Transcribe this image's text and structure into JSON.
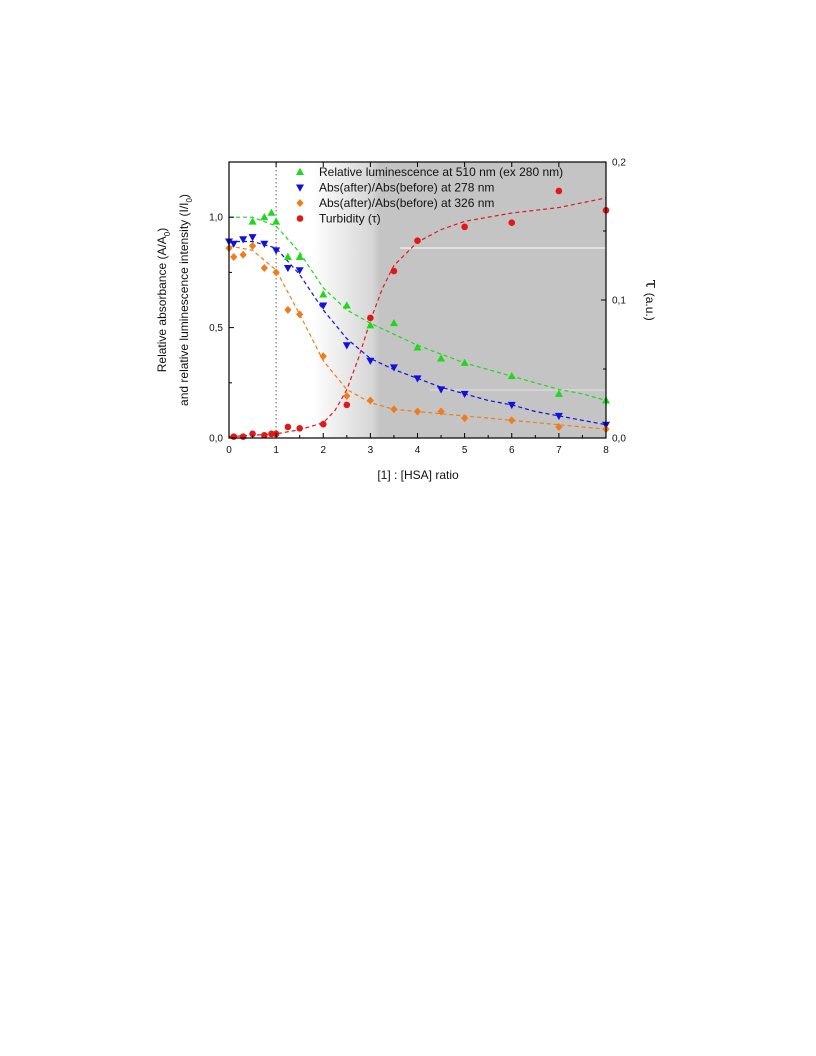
{
  "chart_data": {
    "type": "scatter",
    "xlabel": "[1] : [HSA] ratio",
    "ylabel_left_line1": "Relative absorbance (A/A",
    "ylabel_left_sub1": "0",
    "ylabel_left_mid": ")",
    "ylabel_left_line2": "and relative luminescence intensity (I/I",
    "ylabel_left_sub2": "0",
    "ylabel_left_end": ")",
    "ylabel_right_symbol": "τ",
    "ylabel_right_units": "(a.u.)",
    "xlim": [
      0,
      8
    ],
    "ylim_left": [
      0,
      1.25
    ],
    "ylim_right": [
      0,
      0.2
    ],
    "x_ticks": [
      "0",
      "1",
      "2",
      "3",
      "4",
      "5",
      "6",
      "7",
      "8"
    ],
    "y_left_ticks": [
      "0,0",
      "0,5",
      "1,0"
    ],
    "y_right_ticks": [
      "0,0",
      "0,1",
      "0,2"
    ],
    "reference_line_x": 1,
    "legend_position": "top-right",
    "series": [
      {
        "name": "Relative luminescence at 510 nm (ex 280 nm)",
        "marker": "triangle-up",
        "color": "#1ed81e",
        "axis": "left",
        "x": [
          0.5,
          0.75,
          0.9,
          1.0,
          1.25,
          1.5,
          2.0,
          2.5,
          3.0,
          3.5,
          4.0,
          4.5,
          5.0,
          6.0,
          7.0,
          8.0
        ],
        "y": [
          0.98,
          1.0,
          1.02,
          0.98,
          0.82,
          0.82,
          0.65,
          0.6,
          0.51,
          0.52,
          0.41,
          0.36,
          0.34,
          0.28,
          0.2,
          0.17
        ],
        "fit": {
          "x": [
            0,
            0.5,
            1.0,
            1.5,
            2.0,
            2.5,
            3.0,
            3.5,
            4.0,
            4.5,
            5.0,
            5.5,
            6.0,
            6.5,
            7.0,
            7.5,
            8.0
          ],
          "y": [
            1.0,
            1.0,
            0.96,
            0.84,
            0.68,
            0.58,
            0.52,
            0.47,
            0.42,
            0.38,
            0.34,
            0.31,
            0.28,
            0.25,
            0.22,
            0.2,
            0.17
          ]
        }
      },
      {
        "name": "Abs(after)/Abs(before) at 278 nm",
        "marker": "triangle-down",
        "color": "#1010e0",
        "axis": "left",
        "x": [
          0,
          0.1,
          0.3,
          0.5,
          0.75,
          1.0,
          1.25,
          1.5,
          2.0,
          2.5,
          3.0,
          3.5,
          4.0,
          4.5,
          5.0,
          6.0,
          7.0,
          8.0
        ],
        "y": [
          0.89,
          0.88,
          0.9,
          0.91,
          0.88,
          0.85,
          0.77,
          0.76,
          0.6,
          0.42,
          0.35,
          0.32,
          0.27,
          0.22,
          0.2,
          0.15,
          0.1,
          0.06
        ],
        "fit": {
          "x": [
            0,
            0.5,
            1.0,
            1.5,
            2.0,
            2.5,
            3.0,
            3.5,
            4.0,
            4.5,
            5.0,
            5.5,
            6.0,
            6.5,
            7.0,
            7.5,
            8.0
          ],
          "y": [
            0.89,
            0.89,
            0.86,
            0.74,
            0.58,
            0.45,
            0.36,
            0.31,
            0.27,
            0.23,
            0.2,
            0.17,
            0.15,
            0.12,
            0.1,
            0.08,
            0.06
          ]
        }
      },
      {
        "name": "Abs(after)/Abs(before) at 326 nm",
        "marker": "diamond",
        "color": "#f07d1a",
        "axis": "left",
        "x": [
          0,
          0.1,
          0.3,
          0.5,
          0.75,
          1.0,
          1.25,
          1.5,
          2.0,
          2.5,
          3.0,
          3.5,
          4.0,
          4.5,
          5.0,
          6.0,
          7.0,
          8.0
        ],
        "y": [
          0.86,
          0.82,
          0.83,
          0.87,
          0.77,
          0.75,
          0.58,
          0.56,
          0.37,
          0.19,
          0.17,
          0.13,
          0.12,
          0.12,
          0.09,
          0.08,
          0.05,
          0.04
        ],
        "fit": {
          "x": [
            0,
            0.5,
            1.0,
            1.5,
            2.0,
            2.5,
            3.0,
            3.5,
            4.0,
            4.5,
            5.0,
            5.5,
            6.0,
            6.5,
            7.0,
            7.5,
            8.0
          ],
          "y": [
            0.87,
            0.85,
            0.76,
            0.56,
            0.35,
            0.22,
            0.16,
            0.13,
            0.12,
            0.11,
            0.1,
            0.09,
            0.08,
            0.07,
            0.06,
            0.05,
            0.04
          ]
        }
      },
      {
        "name": "Turbidity (τ)",
        "marker": "circle",
        "color": "#e01818",
        "axis": "right",
        "x": [
          0.1,
          0.3,
          0.5,
          0.75,
          0.9,
          1.0,
          1.25,
          1.5,
          2.0,
          2.5,
          3.0,
          3.5,
          4.0,
          5.0,
          6.0,
          7.0,
          8.0
        ],
        "y": [
          0.001,
          0.001,
          0.003,
          0.002,
          0.003,
          0.003,
          0.008,
          0.007,
          0.01,
          0.024,
          0.087,
          0.121,
          0.143,
          0.153,
          0.156,
          0.179,
          0.165
        ],
        "fit": {
          "x": [
            0,
            0.5,
            1.0,
            1.5,
            2.0,
            2.25,
            2.5,
            2.75,
            3.0,
            3.25,
            3.5,
            4.0,
            4.5,
            5.0,
            6.0,
            7.0,
            8.0
          ],
          "y": [
            0.001,
            0.002,
            0.003,
            0.006,
            0.011,
            0.02,
            0.035,
            0.058,
            0.085,
            0.108,
            0.125,
            0.142,
            0.151,
            0.157,
            0.163,
            0.167,
            0.174
          ]
        }
      }
    ]
  }
}
